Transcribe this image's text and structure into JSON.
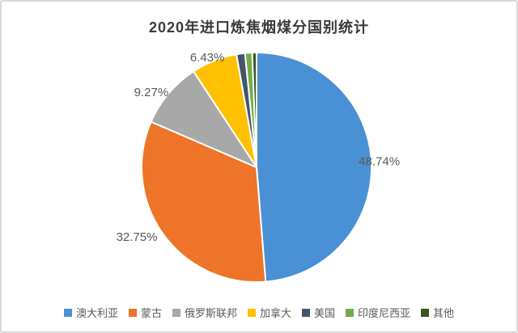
{
  "chart_data": {
    "type": "pie",
    "title": "2020年进口炼焦烟煤分国别统计",
    "legend_position": "bottom",
    "start_angle_deg": 0,
    "direction": "clockwise",
    "value_unit": "%",
    "slices": [
      {
        "label": "澳大利亚",
        "value": 48.74,
        "color": "#4A90D5",
        "data_label": "48.74%"
      },
      {
        "label": "蒙古",
        "value": 32.75,
        "color": "#ED7429",
        "data_label": "32.75%"
      },
      {
        "label": "俄罗斯联邦",
        "value": 9.27,
        "color": "#A8A8A8",
        "data_label": "9.27%"
      },
      {
        "label": "加拿大",
        "value": 6.43,
        "color": "#FFC000",
        "data_label": "6.43%"
      },
      {
        "label": "美国",
        "value": 1.2,
        "color": "#44546A",
        "data_label": ""
      },
      {
        "label": "印度尼西亚",
        "value": 1.0,
        "color": "#70AD47",
        "data_label": ""
      },
      {
        "label": "其他",
        "value": 0.61,
        "color": "#375623",
        "data_label": ""
      }
    ]
  }
}
